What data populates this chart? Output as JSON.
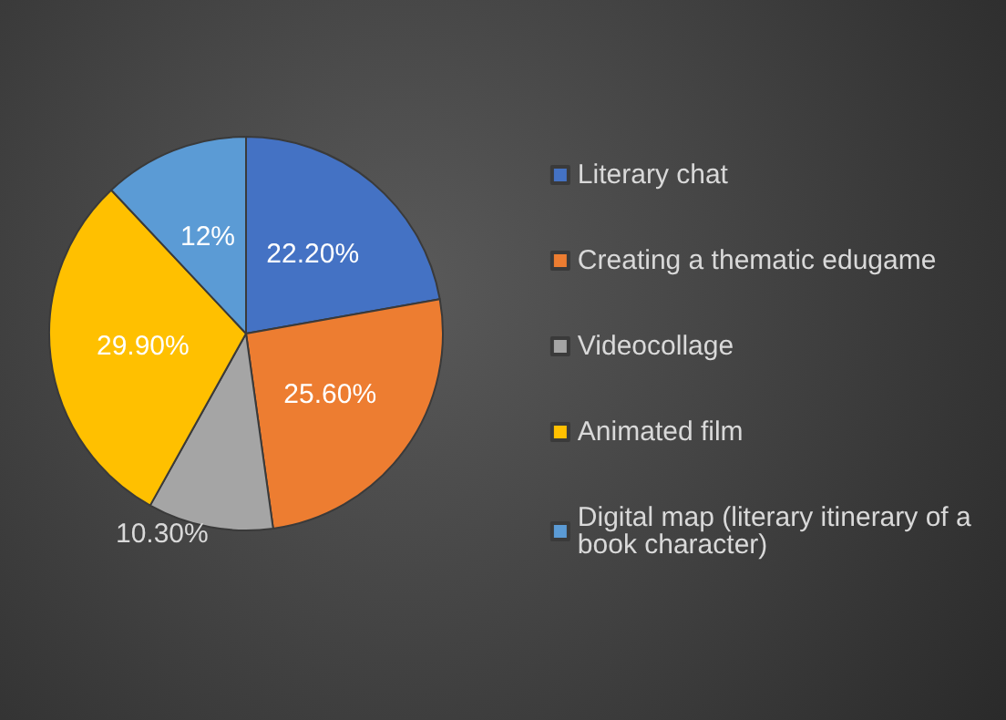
{
  "chart_data": {
    "type": "pie",
    "categories": [
      "Literary chat",
      "Creating a thematic edugame",
      "Videocollage",
      "Animated film",
      "Digital map (literary itinerary of a book character)"
    ],
    "values": [
      22.2,
      25.6,
      10.3,
      29.9,
      12
    ],
    "colors": [
      "#4472c4",
      "#ed7d31",
      "#a5a5a5",
      "#ffc000",
      "#5b9bd5"
    ],
    "value_labels": [
      "22.20%",
      "25.60%",
      "10.30%",
      "29.90%",
      "12%"
    ],
    "legend": "right"
  }
}
